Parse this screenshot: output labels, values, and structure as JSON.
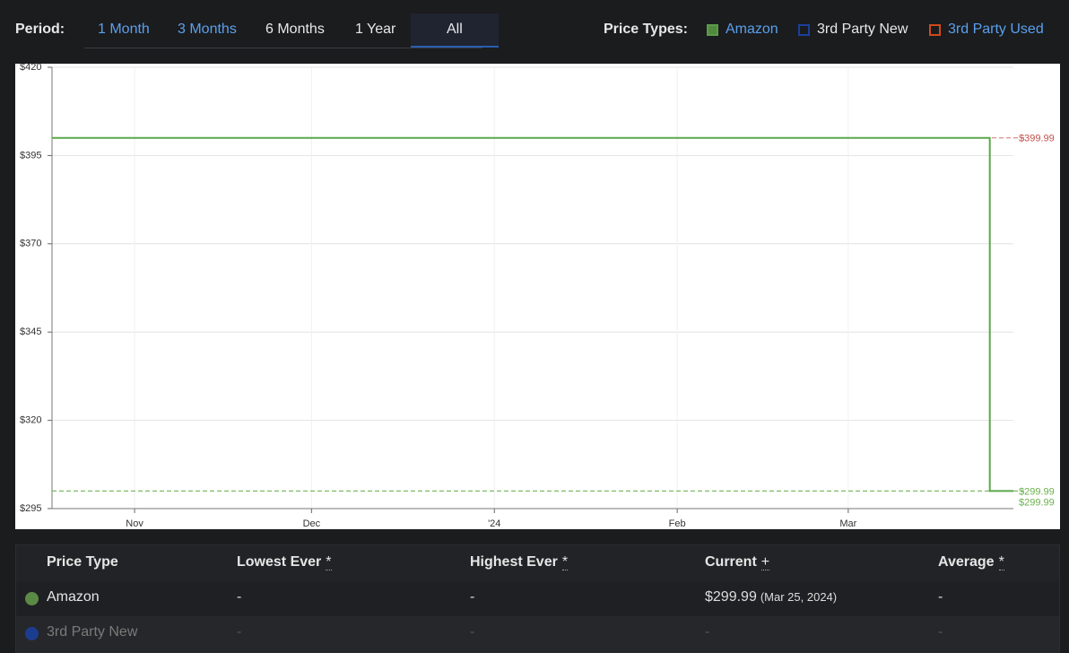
{
  "toolbar": {
    "period_label": "Period:",
    "periods": [
      "1 Month",
      "3 Months",
      "6 Months",
      "1 Year",
      "All"
    ],
    "active_period": "All",
    "types_label": "Price Types:",
    "price_types": [
      {
        "name": "Amazon",
        "checked": true,
        "color": "#4f8a3e"
      },
      {
        "name": "3rd Party New",
        "checked": false,
        "color": "#1b3f9c"
      },
      {
        "name": "3rd Party Used",
        "checked": false,
        "color": "#d04a1c"
      }
    ]
  },
  "chart_data": {
    "type": "line",
    "step": true,
    "xlim": [
      "2023-10-18",
      "2024-03-29"
    ],
    "xticks": [
      {
        "value": "2023-11-01",
        "label": "Nov"
      },
      {
        "value": "2023-12-01",
        "label": "Dec"
      },
      {
        "value": "2024-01-01",
        "label": "'24"
      },
      {
        "value": "2024-02-01",
        "label": "Feb"
      },
      {
        "value": "2024-03-01",
        "label": "Mar"
      }
    ],
    "ylim": [
      295,
      420
    ],
    "yticks": [
      {
        "value": 295,
        "label": "$295"
      },
      {
        "value": 320,
        "label": "$320"
      },
      {
        "value": 345,
        "label": "$345"
      },
      {
        "value": 370,
        "label": "$370"
      },
      {
        "value": 395,
        "label": "$395"
      },
      {
        "value": 420,
        "label": "$420"
      }
    ],
    "grid": true,
    "series": [
      {
        "name": "Amazon",
        "color": "#5aa84a",
        "x": [
          "2023-10-18",
          "2024-03-25",
          "2024-03-25",
          "2024-03-29"
        ],
        "values": [
          399.99,
          399.99,
          299.99,
          299.99
        ]
      }
    ],
    "reference_lines": [
      {
        "value": 399.99,
        "label": "$399.99",
        "color": "#c0504d"
      },
      {
        "value": 299.99,
        "label": "$299.99",
        "color": "#6ab04c"
      },
      {
        "value": 299.99,
        "label": "$299.99",
        "color": "#6ab04c"
      }
    ]
  },
  "table": {
    "headers": [
      {
        "label": "Price Type",
        "marker": null
      },
      {
        "label": "Lowest Ever",
        "marker": "*"
      },
      {
        "label": "Highest Ever",
        "marker": "*"
      },
      {
        "label": "Current",
        "marker": "+"
      },
      {
        "label": "Average",
        "marker": "*"
      }
    ],
    "rows": [
      {
        "type": "Amazon",
        "color": "#5a8a46",
        "cells": [
          "-",
          "-",
          "$299.99",
          "-"
        ],
        "current_date": "(Mar 25, 2024)"
      },
      {
        "type": "3rd Party New",
        "color": "#1c3d8f",
        "cells": [
          "-",
          "-",
          "-",
          "-"
        ],
        "current_date": null
      }
    ]
  }
}
